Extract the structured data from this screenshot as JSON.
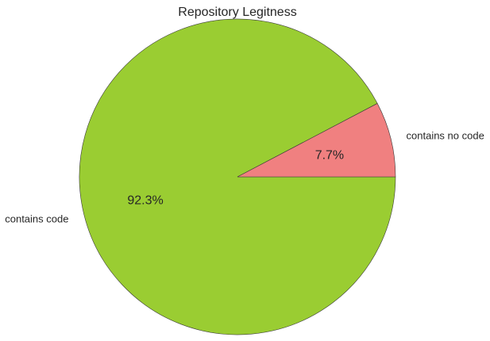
{
  "chart_data": {
    "type": "pie",
    "title": "Repository Legitness",
    "slices": [
      {
        "label": "contains code",
        "value": 92.3,
        "pct_label": "92.3%",
        "color": "#9acd32"
      },
      {
        "label": "contains no code",
        "value": 7.7,
        "pct_label": "7.7%",
        "color": "#f08080"
      }
    ],
    "start_angle_deg": 0,
    "direction": "clockwise",
    "edge_color": "#3a3a3a"
  }
}
